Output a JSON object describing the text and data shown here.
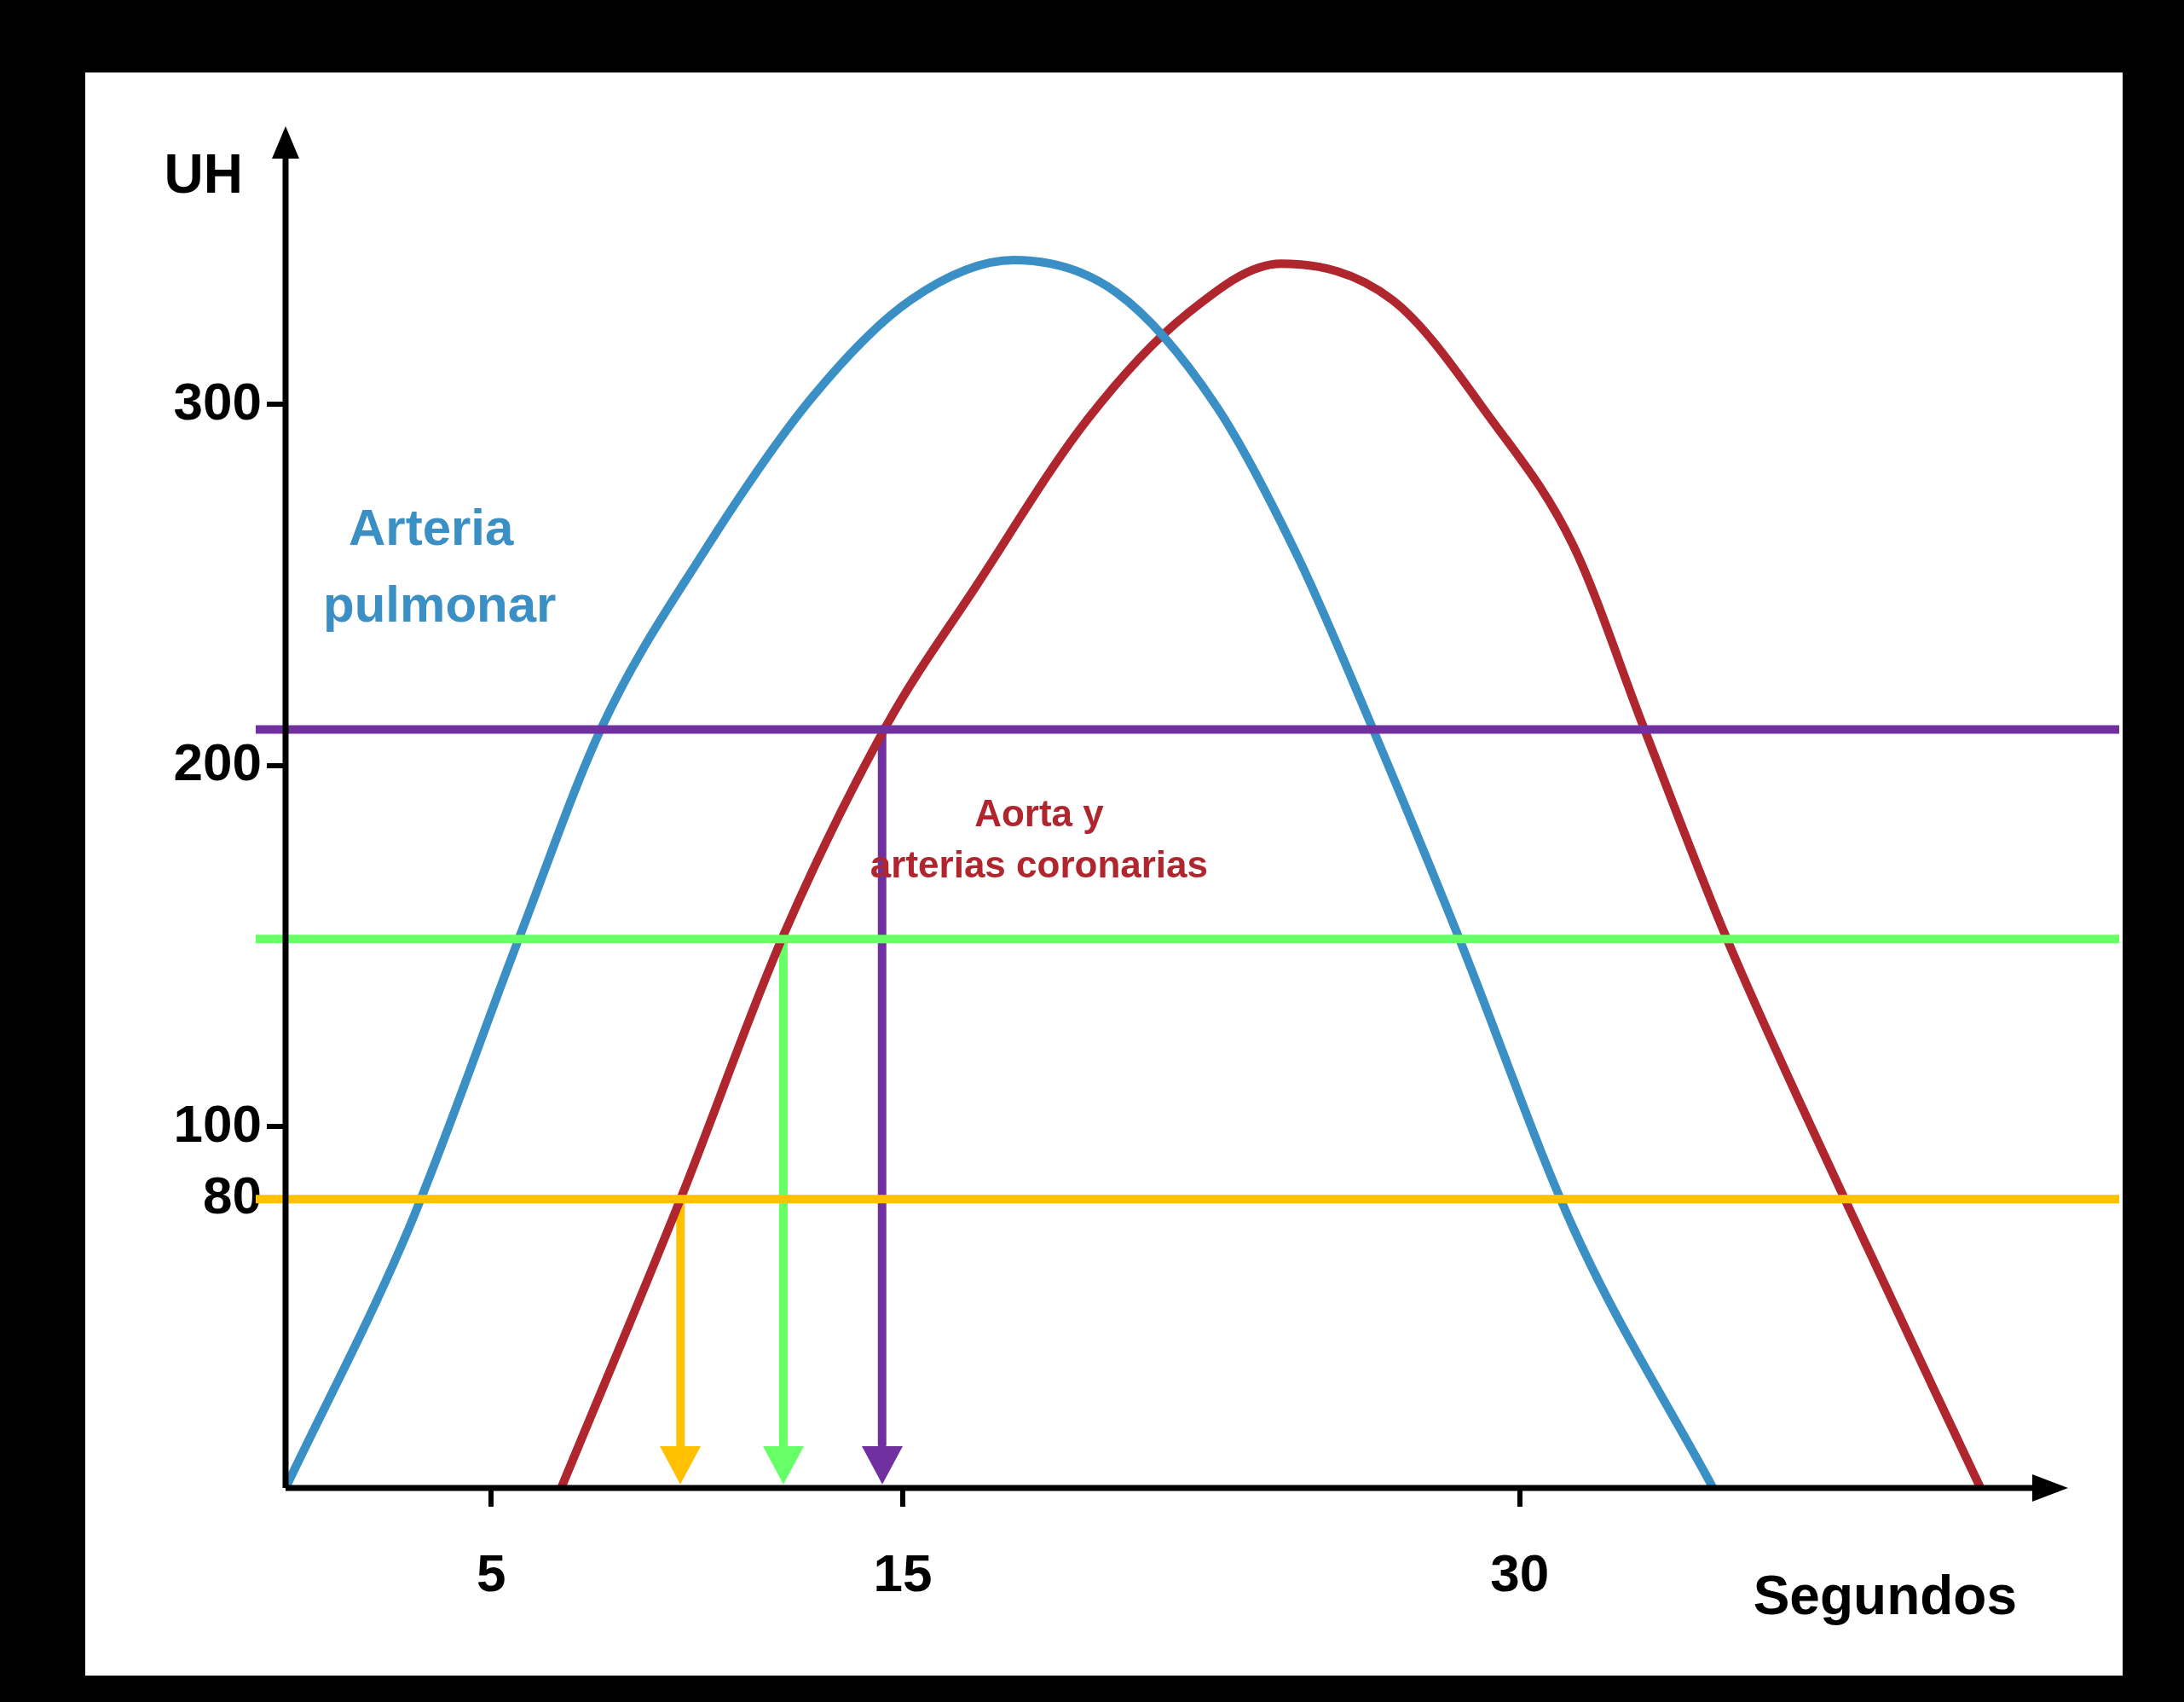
{
  "chart_data": {
    "type": "line",
    "xlabel": "Segundos",
    "ylabel": "UH",
    "xlim": [
      0,
      42.5
    ],
    "ylim": [
      0,
      370
    ],
    "xticks": [
      5,
      15,
      30
    ],
    "yticks": [
      80,
      100,
      200,
      300
    ],
    "grid": false,
    "legend": false,
    "marker": "none",
    "series": [
      {
        "name": "Arteria pulmonar",
        "color": "#3a8fc4",
        "x": [
          0,
          3.0,
          5.7,
          7.7,
          10.1,
          12.8,
          15.2,
          17.7,
          20.2,
          22.6,
          24.6,
          26.4,
          28.5,
          31.3,
          34.7
        ],
        "values": [
          0,
          72,
          153,
          211,
          258,
          302,
          329,
          340,
          331,
          300,
          258,
          211,
          153,
          72,
          0
        ]
      },
      {
        "name": "Aorta y arterias coronarias",
        "color": "#b0262f",
        "x": [
          6.7,
          9.6,
          12.1,
          14.6,
          16.8,
          19.5,
          21.9,
          24.2,
          26.9,
          29.3,
          31.3,
          33.0,
          35.0,
          37.9,
          41.2
        ],
        "values": [
          0,
          80,
          153,
          211,
          250,
          296,
          325,
          339,
          329,
          296,
          261,
          211,
          153,
          80,
          0
        ]
      },
      {
        "color": "#ffc000",
        "x": [
          9.6,
          9.6
        ],
        "values": [
          80,
          12
        ]
      },
      {
        "color": "#66ff66",
        "x": [
          12.1,
          12.1
        ],
        "values": [
          152,
          12
        ]
      },
      {
        "color": "#7030a0",
        "x": [
          14.5,
          14.5
        ],
        "values": [
          210,
          12
        ]
      }
    ],
    "ref_lines": [
      {
        "axis": "y",
        "value": 210,
        "color": "#7030a0"
      },
      {
        "axis": "y",
        "value": 152,
        "color": "#66ff66"
      },
      {
        "axis": "y",
        "value": 80,
        "color": "#ffc000"
      }
    ]
  }
}
